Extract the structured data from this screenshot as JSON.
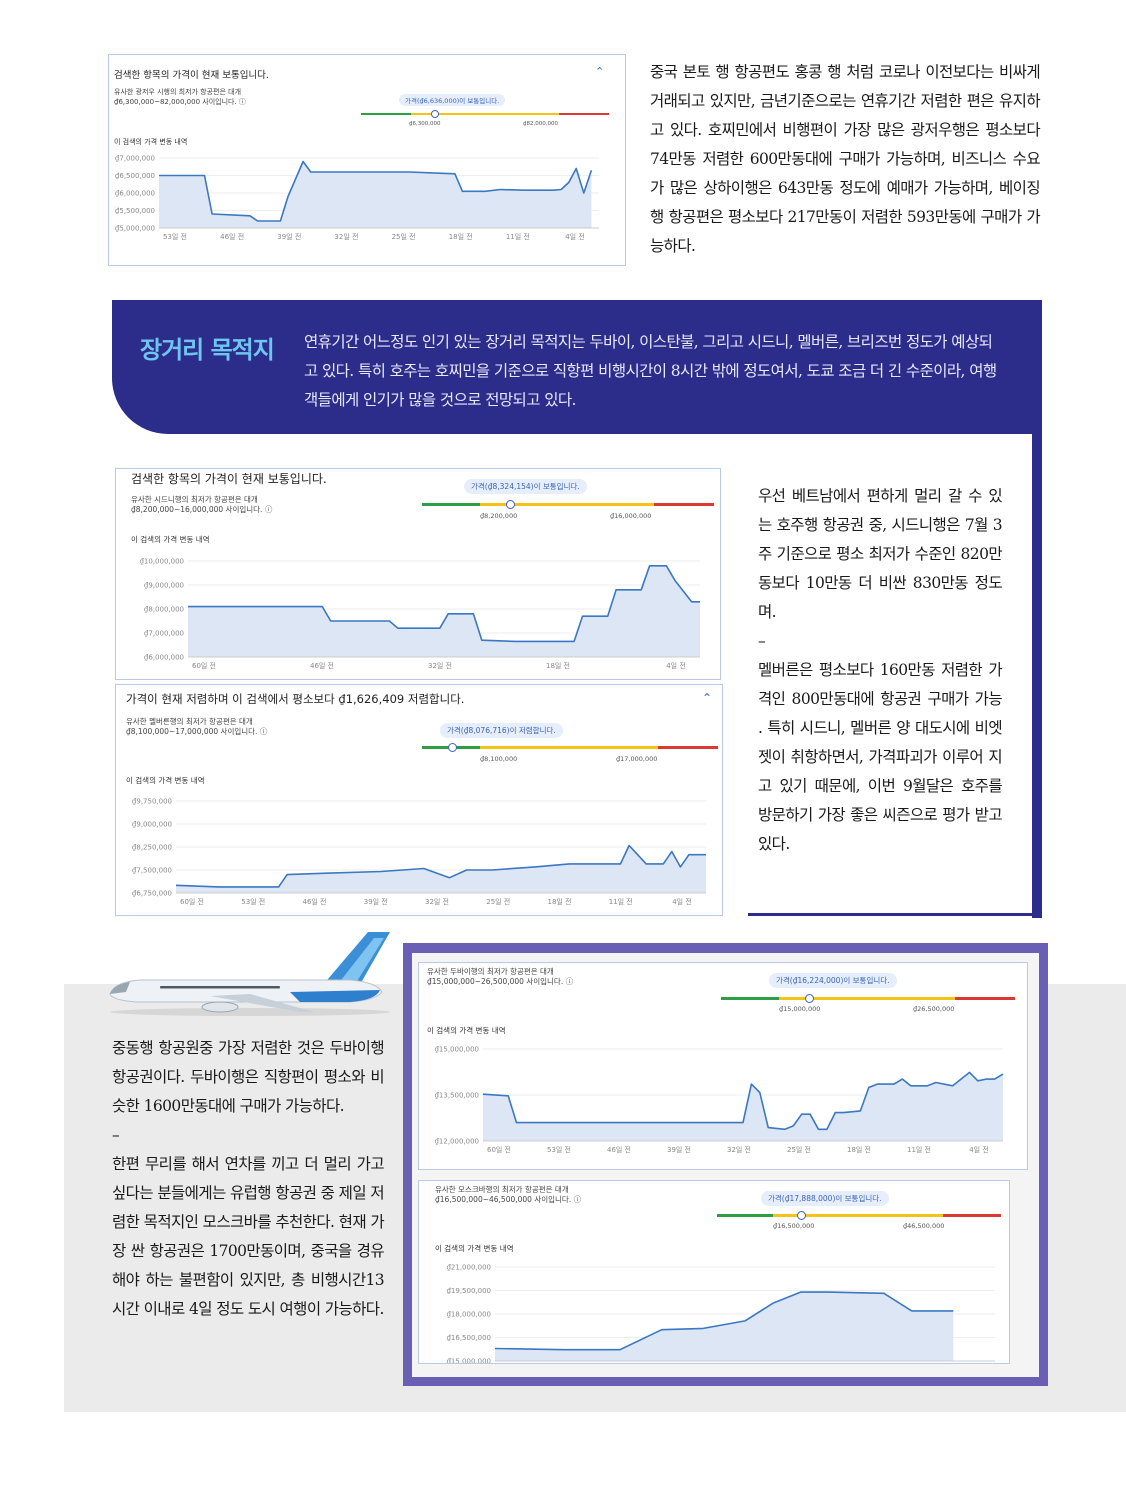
{
  "intro_paragraph": "중국 본토 행 항공편도 홍콩 행 처럼 코로나 이전보다는 비싸게 거래되고 있지만, 금년기준으로는 연휴기간 저렴한 편은 유지하고 있다. 호찌민에서 비행편이 가장 많은 광저우행은 평소보다 74만동 저렴한 600만동대에 구매가 가능하며, 비즈니스 수요가 많은 상하이행은 643만동 정도에 예매가 가능하며, 베이징행 항공편은 평소보다 217만동이 저렴한 593만동에 구매가 가능하다.",
  "banner": {
    "title": "장거리 목적지",
    "text": "연휴기간 어느정도 인기 있는 장거리 목적지는 두바이, 이스탄불, 그리고 시드니, 멜버른, 브리즈번 정도가 예상되고 있다. 특히 호주는 호찌민을 기준으로 직항편 비행시간이 8시간 밖에 정도여서, 도쿄 조금 더 긴 수준이라, 여행객들에게 인기가 많을 것으로 전망되고 있다."
  },
  "australia_text": {
    "p1": "우선 베트남에서 편하게 멀리 갈 수 있는 호주행 항공권 중, 시드니행은 7월 3주 기준으로 평소 최저가 수준인 820만동보다 10만동 더 비싼 830만동 정도며.",
    "dash": "–",
    "p2": "멜버른은 평소보다 160만동 저렴한 가격인 800만동대에 항공권 구매가 가능   . 특히 시드니, 멜버른 양 대도시에 비엣젯이 취항하면서, 가격파괴가 이루어 지고 있기 때문에, 이번 9월달은 호주를 방문하기 가장 좋은 씨즌으로 평가 받고 있다."
  },
  "middle_east_text": {
    "p1": "중동행 항공원중 가장 저렴한 것은 두바이행 항공권이다. 두바이행은 직항편이 평소와 비슷한 1600만동대에 구매가 가능하다.",
    "dash": "–",
    "p2": "한편 무리를 해서 연차를 끼고 더 멀리 가고 싶다는 분들에게는 유럽행 항공권 중 제일 저렴한 목적지인 모스크바를 추천한다. 현재 가장 싼 항공권은 1700만동이며, 중국을 경유해야 하는 불편함이 있지만, 총 비행시간13시간 이내로 4일 정도 도시 여행이 가능하다."
  },
  "colors": {
    "banner": "#2c2c8a",
    "banner_title": "#6ec6f0",
    "line": "#3a78c2",
    "area": "#dde6f4",
    "frame": "#6a5fb5",
    "gauge_green": "#2e9e44",
    "gauge_yellow": "#f3c315",
    "gauge_red": "#d93a34"
  },
  "icons": {
    "plane": "airplane-illustration",
    "info": "info-circle-icon",
    "chevron": "chevron-up-icon"
  },
  "charts": {
    "china": {
      "header": "검색한 항목의 가격이 현재 보통입니다.",
      "desc1": "유사한 광저우 시행의 최저가 항공편은 대개",
      "desc2": "₫6,300,000~82,000,000 사이입니다.",
      "pill": "가격(₫6,636,000)이 보통입니다.",
      "low": "₫6,300,000",
      "high": "₫82,000,000",
      "history": "이 검색의 가격 변동 내역"
    },
    "sydney": {
      "header": "검색한 항목의 가격이 현재 보통입니다.",
      "desc1": "유사한 시드니행의 최저가 항공편은 대개",
      "desc2": "₫8,200,000~16,000,000 사이입니다.",
      "pill": "가격(₫8,324,154)이 보통입니다.",
      "low": "₫8,200,000",
      "high": "₫16,000,000",
      "history": "이 검색의 가격 변동 내역"
    },
    "melbourne": {
      "header": "가격이 현재 저렴하며 이 검색에서 평소보다 ₫1,626,409 저렴합니다.",
      "desc1": "유사한 멜버른행의 최저가 항공편은 대개",
      "desc2": "₫8,100,000~17,000,000 사이입니다.",
      "pill": "가격(₫8,076,716)이 저렴합니다.",
      "low": "₫8,100,000",
      "high": "₫17,000,000",
      "history": "이 검색의 가격 변동 내역"
    },
    "dubai": {
      "desc1": "유사한 두바이행의 최저가 항공편은 대개",
      "desc2": "₫15,000,000~26,500,000 사이입니다.",
      "pill": "가격(₫16,224,000)이 보통입니다.",
      "low": "₫15,000,000",
      "high": "₫26,500,000",
      "history": "이 검색의 가격 변동 내역"
    },
    "moscow": {
      "desc1": "유사한 모스크바행의 최저가 항공편은 대개",
      "desc2": "₫16,500,000~46,500,000 사이입니다.",
      "pill": "가격(₫17,888,000)이 보통입니다.",
      "low": "₫16,500,000",
      "high": "₫46,500,000",
      "history": "이 검색의 가격 변동 내역"
    }
  },
  "chart_data": [
    {
      "type": "area",
      "id": "china",
      "ylabels": [
        "₫7,000,000",
        "₫6,500,000",
        "₫6,000,000",
        "₫5,500,000",
        "₫5,000,000"
      ],
      "ylim": [
        5000000,
        7000000
      ],
      "xlabels": [
        "53일 전",
        "46일 전",
        "39일 전",
        "32일 전",
        "25일 전",
        "18일 전",
        "11일 전",
        "4일 전"
      ],
      "xlim": [
        58,
        0
      ],
      "x": [
        58,
        52,
        51,
        46,
        45,
        42,
        41,
        39,
        38,
        32,
        25,
        19,
        18,
        15,
        13,
        10,
        6,
        5,
        4,
        3,
        2,
        1
      ],
      "values": [
        6500000,
        6500000,
        5400000,
        5350000,
        5200000,
        5200000,
        5900000,
        6900000,
        6600000,
        6600000,
        6600000,
        6550000,
        6050000,
        6050000,
        6100000,
        6080000,
        6080000,
        6100000,
        6300000,
        6700000,
        6000000,
        6650000
      ]
    },
    {
      "type": "area",
      "id": "sydney",
      "ylabels": [
        "₫10,000,000",
        "₫9,000,000",
        "₫8,000,000",
        "₫7,000,000",
        "₫6,000,000"
      ],
      "ylim": [
        6000000,
        10000000
      ],
      "xlabels": [
        "60일 전",
        "46일 전",
        "32일 전",
        "18일 전",
        "4일 전"
      ],
      "xlim": [
        61,
        0
      ],
      "x": [
        61,
        45,
        44,
        37,
        36,
        31,
        30,
        27,
        26,
        22,
        21,
        15,
        14,
        11,
        10,
        7,
        6,
        4,
        3,
        1,
        0
      ],
      "values": [
        8100000,
        8100000,
        7500000,
        7500000,
        7200000,
        7200000,
        7800000,
        7800000,
        6700000,
        6650000,
        6650000,
        6650000,
        7700000,
        7700000,
        8800000,
        8800000,
        9800000,
        9800000,
        9200000,
        8300000,
        8300000
      ]
    },
    {
      "type": "area",
      "id": "melbourne",
      "ylabels": [
        "₫9,750,000",
        "₫9,000,000",
        "₫8,250,000",
        "₫7,500,000",
        "₫6,750,000"
      ],
      "ylim": [
        6750000,
        9750000
      ],
      "xlabels": [
        "60일 전",
        "53일 전",
        "46일 전",
        "39일 전",
        "32일 전",
        "25일 전",
        "18일 전",
        "11일 전",
        "4일 전"
      ],
      "xlim": [
        62,
        0
      ],
      "x": [
        62,
        57,
        50,
        49,
        44,
        38,
        33,
        30,
        28,
        25,
        20,
        16,
        10,
        9,
        7,
        5,
        4,
        3,
        2,
        1,
        0
      ],
      "values": [
        7000000,
        6950000,
        6950000,
        7350000,
        7400000,
        7450000,
        7550000,
        7250000,
        7500000,
        7500000,
        7600000,
        7700000,
        7700000,
        8300000,
        7700000,
        7700000,
        8100000,
        7600000,
        8000000,
        8000000,
        8000000
      ]
    },
    {
      "type": "area",
      "id": "dubai",
      "ylabels": [
        "₫15,000,000",
        "₫13,500,000",
        "₫12,000,000"
      ],
      "ylim": [
        12000000,
        17500000
      ],
      "xlabels": [
        "60일 전",
        "53일 전",
        "46일 전",
        "39일 전",
        "32일 전",
        "25일 전",
        "18일 전",
        "11일 전",
        "4일 전"
      ],
      "xlim": [
        62,
        0
      ],
      "x": [
        62,
        59,
        58,
        31,
        30,
        29,
        28,
        26,
        25,
        24,
        23,
        22,
        21,
        20,
        19,
        17,
        16,
        15,
        13,
        12,
        11,
        9,
        8,
        6,
        4,
        3,
        2,
        1,
        0
      ],
      "values": [
        14800000,
        14700000,
        13100000,
        13100000,
        15400000,
        14900000,
        12800000,
        12700000,
        12900000,
        13600000,
        13600000,
        12700000,
        12700000,
        13700000,
        13700000,
        13800000,
        15200000,
        15400000,
        15400000,
        15700000,
        15300000,
        15300000,
        15500000,
        15300000,
        16100000,
        15600000,
        15700000,
        15700000,
        16000000
      ]
    },
    {
      "type": "area",
      "id": "moscow",
      "ylabels": [
        "₫21,000,000",
        "₫19,500,000",
        "₫18,000,000",
        "₫16,500,000",
        "₫15,000,000"
      ],
      "ylim": [
        14000000,
        21500000
      ],
      "xlabels": [],
      "xlim": [
        36,
        0
      ],
      "x": [
        36,
        31,
        27,
        24,
        21,
        18,
        16,
        14,
        12,
        8,
        6,
        5,
        3
      ],
      "values": [
        15000000,
        14900000,
        14900000,
        16500000,
        16600000,
        17200000,
        18600000,
        19500000,
        19500000,
        19400000,
        18000000,
        18000000,
        18000000
      ]
    }
  ]
}
